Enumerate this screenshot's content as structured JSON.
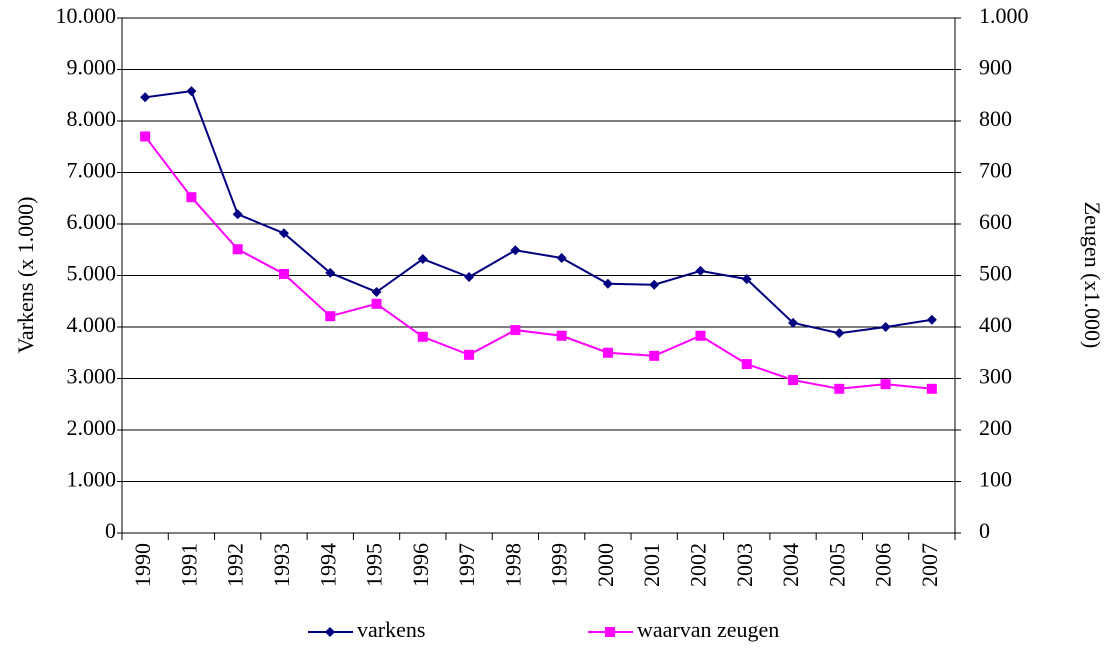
{
  "chart_data": {
    "type": "line",
    "y_label": "Varkens (x 1.000)",
    "y2_label": "Zeugen (x1.000)",
    "categories": [
      "1990",
      "1991",
      "1992",
      "1993",
      "1994",
      "1995",
      "1996",
      "1997",
      "1998",
      "1999",
      "2000",
      "2001",
      "2002",
      "2003",
      "2004",
      "2005",
      "2006",
      "2007"
    ],
    "series": [
      {
        "name": "varkens",
        "color": "#000080",
        "marker": "diamond",
        "values": [
          8460,
          8580,
          6190,
          5820,
          5050,
          4680,
          5320,
          4970,
          5490,
          5340,
          4840,
          4820,
          5090,
          4930,
          4080,
          3880,
          4000,
          4140
        ]
      },
      {
        "name": "waarvan zeugen",
        "color": "#ff00ff",
        "marker": "square",
        "axis": "y2",
        "values": [
          770,
          652,
          551,
          503,
          421,
          445,
          381,
          346,
          394,
          383,
          350,
          344,
          383,
          328,
          297,
          280,
          289,
          280
        ]
      }
    ],
    "ylim": [
      0,
      10000
    ],
    "yticks": [
      0,
      {
        "value": 1000,
        "label": "1.000"
      },
      {
        "value": 2000,
        "label": "2.000"
      },
      {
        "value": 3000,
        "label": "3.000"
      },
      {
        "value": 4000,
        "label": "4.000"
      },
      {
        "value": 5000,
        "label": "5.000"
      },
      {
        "value": 6000,
        "label": "6.000"
      },
      {
        "value": 7000,
        "label": "7.000"
      },
      {
        "value": 8000,
        "label": "8.000"
      },
      {
        "value": 9000,
        "label": "9.000"
      },
      {
        "value": 10000,
        "label": "10.000"
      }
    ],
    "y2lim": [
      0,
      1000
    ],
    "y2ticks": [
      0,
      100,
      200,
      300,
      400,
      500,
      600,
      700,
      800,
      900,
      {
        "value": 1000,
        "label": "1.000"
      }
    ],
    "grid": true,
    "legend": "bottom"
  }
}
